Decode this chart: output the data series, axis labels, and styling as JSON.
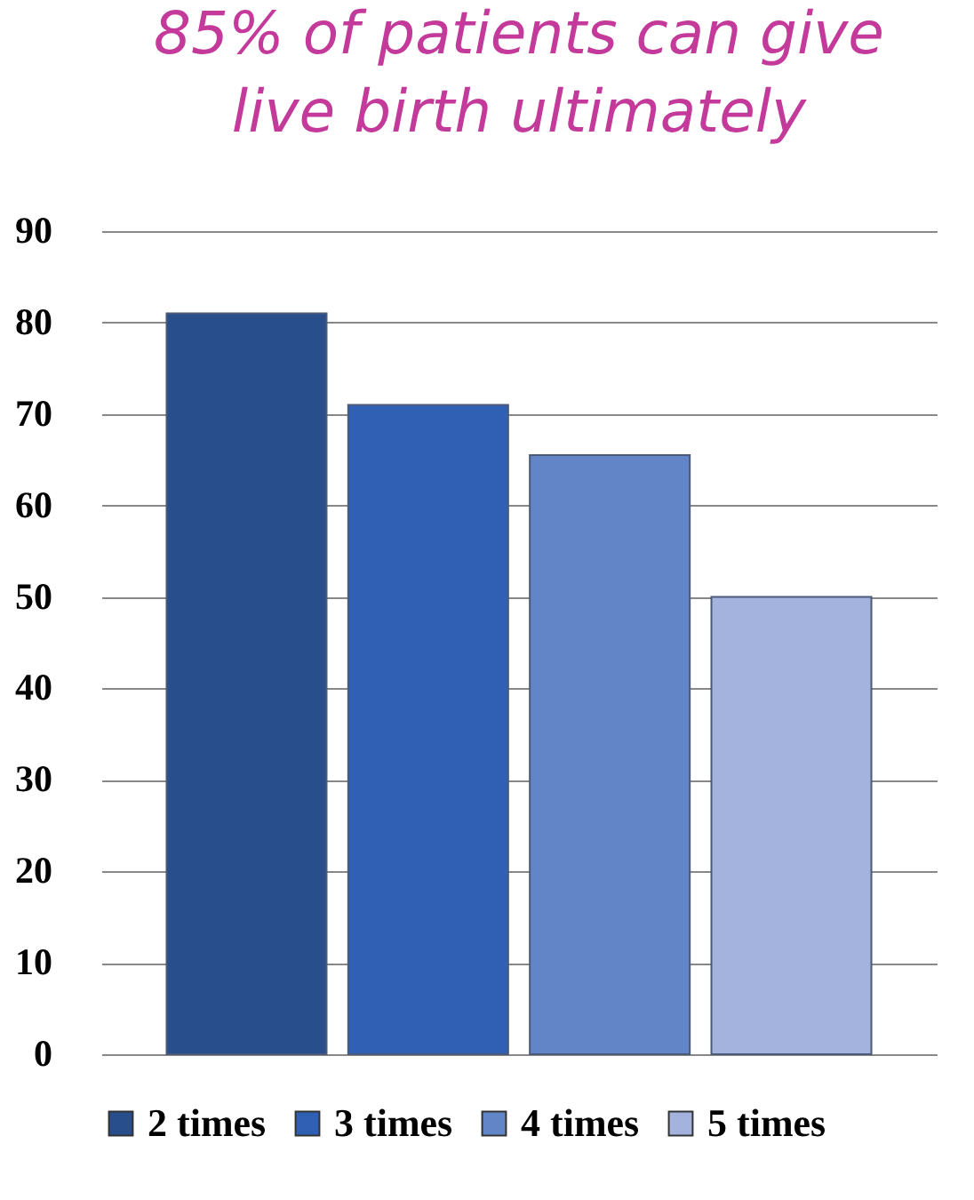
{
  "chart_data": {
    "type": "bar",
    "title": "85% of patients can give live birth ultimately",
    "categories": [
      null,
      null,
      null,
      null
    ],
    "series": [
      {
        "name": "2 times",
        "color": "#284e8c",
        "values": [
          81,
          null,
          null,
          null
        ]
      },
      {
        "name": "3 times",
        "color": "#2f60b4",
        "values": [
          null,
          71,
          null,
          null
        ]
      },
      {
        "name": "4 times",
        "color": "#6285c8",
        "values": [
          null,
          null,
          65.5,
          null
        ]
      },
      {
        "name": "5 times",
        "color": "#a3b3dd",
        "values": [
          null,
          null,
          null,
          50
        ]
      }
    ],
    "ylim": [
      0,
      90
    ],
    "yticks": [
      0,
      10,
      20,
      30,
      40,
      50,
      60,
      70,
      80,
      90
    ],
    "grid": "y",
    "legend": "bottom"
  }
}
